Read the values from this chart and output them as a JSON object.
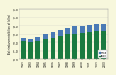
{
  "years": [
    "1992",
    "1993",
    "1994",
    "1995",
    "1996",
    "1997",
    "1998",
    "1999",
    "2000",
    "2001",
    "2002",
    "2003"
  ],
  "green_values": [
    2.1,
    2.0,
    2.2,
    2.4,
    2.6,
    2.8,
    3.0,
    3.1,
    3.2,
    3.3,
    3.35,
    3.4
  ],
  "blue_values": [
    0.4,
    0.45,
    0.5,
    0.6,
    0.65,
    0.7,
    0.75,
    0.8,
    0.85,
    0.85,
    0.85,
    0.85
  ],
  "green_color": "#1a7a40",
  "blue_color": "#4a7ab5",
  "ylim": [
    0,
    6.0
  ],
  "ytick_vals": [
    0.0,
    1.0,
    2.0,
    3.0,
    4.0,
    5.0,
    6.0
  ],
  "ytick_labels": [
    "$0.0",
    "$1.0",
    "$2.0",
    "$3.0",
    "$4.0",
    "$5.0",
    "$6.0"
  ],
  "ylabel": "Total reimbursements (billions of dollars)",
  "background_color": "#f7f7dc",
  "plot_bg_color": "#f7f7dc",
  "legend_labels": [
    "CABG",
    "PTCA"
  ],
  "bar_width": 0.65
}
